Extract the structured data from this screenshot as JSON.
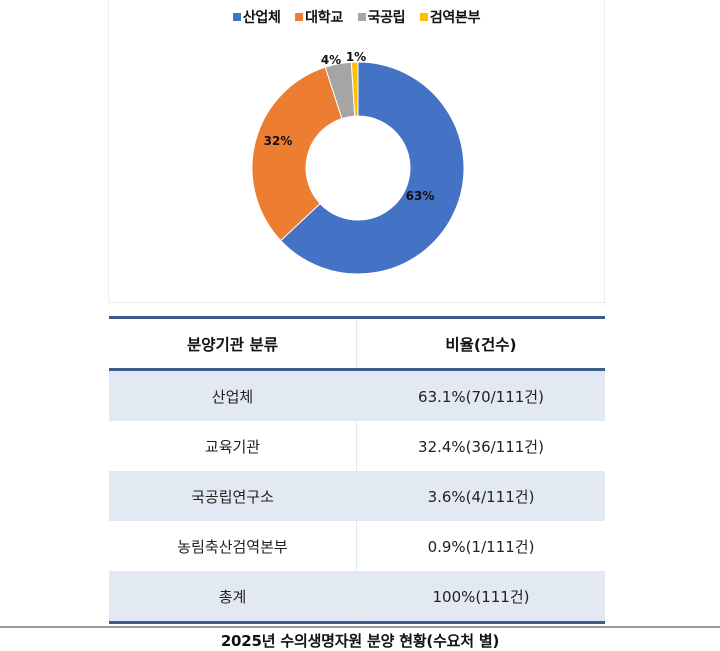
{
  "chart_data": {
    "type": "pie",
    "variant": "donut",
    "title": "",
    "categories": [
      "산업체",
      "대학교",
      "국공립",
      "검역본부"
    ],
    "values": [
      63,
      32,
      4,
      1
    ],
    "labels": [
      "63%",
      "32%",
      "4%",
      "1%"
    ],
    "colors": [
      "#4472C4",
      "#ED7D31",
      "#A5A5A5",
      "#FFC000"
    ],
    "legend_position": "top",
    "legend": [
      "산업체",
      "대학교",
      "국공립",
      "검역본부"
    ]
  },
  "legend": {
    "items": [
      {
        "label": "산업체",
        "color": "#4472C4"
      },
      {
        "label": "대학교",
        "color": "#ED7D31"
      },
      {
        "label": "국공립",
        "color": "#A5A5A5"
      },
      {
        "label": "검역본부",
        "color": "#FFC000"
      }
    ]
  },
  "table": {
    "headers": [
      "분양기관 분류",
      "비율(건수)"
    ],
    "rows": [
      [
        "산업체",
        "63.1%(70/111건)"
      ],
      [
        "교육기관",
        "32.4%(36/111건)"
      ],
      [
        "국공립연구소",
        "3.6%(4/111건)"
      ],
      [
        "농림축산검역본부",
        "0.9%(1/111건)"
      ],
      [
        "총계",
        "100%(111건)"
      ]
    ]
  },
  "caption": "2025년 수의생명자원 분양 현황(수요처 별)"
}
